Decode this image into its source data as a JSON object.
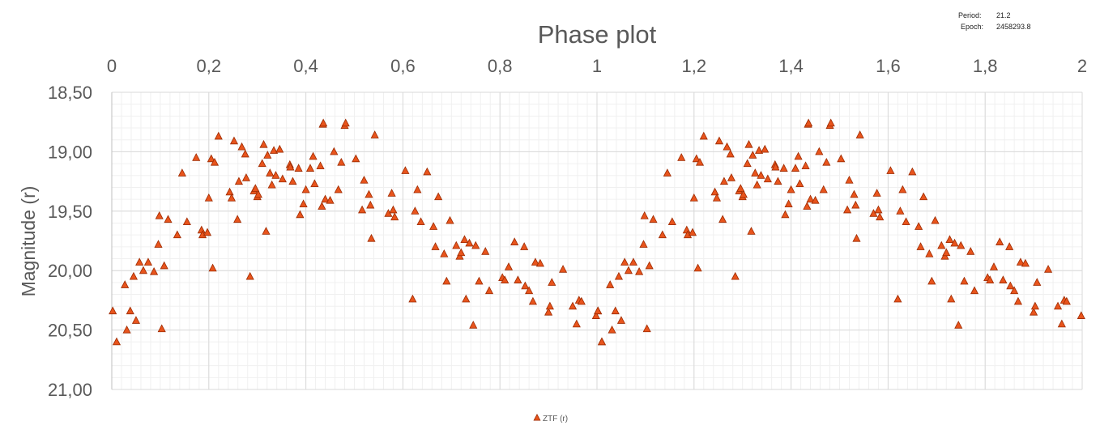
{
  "chart_data": {
    "type": "scatter",
    "title": "Phase plot",
    "xlabel": "",
    "ylabel": "Magnitude (r)",
    "xlim": [
      0,
      2
    ],
    "ylim": [
      18.5,
      21.0
    ],
    "y_inverted": true,
    "x_axis_position": "top",
    "xticks": [
      "0",
      "0,2",
      "0,4",
      "0,6",
      "0,8",
      "1",
      "1,2",
      "1,4",
      "1,6",
      "1,8",
      "2"
    ],
    "yticks": [
      "18,50",
      "19,00",
      "19,50",
      "20,00",
      "20,50",
      "21,00"
    ],
    "grid": true,
    "legend_position": "bottom-center",
    "marker": "triangle",
    "marker_color": "#E8541C",
    "marker_edge": "#9C2A00",
    "period_label": "Period:",
    "period_value": "21.2",
    "epoch_label": "Epoch:",
    "epoch_value": "2458293.8",
    "series": [
      {
        "name": "ZTF (r)",
        "points": [
          [
            0.002,
            20.34
          ],
          [
            0.01,
            20.6
          ],
          [
            0.027,
            20.12
          ],
          [
            0.031,
            20.5
          ],
          [
            0.038,
            20.34
          ],
          [
            0.045,
            20.05
          ],
          [
            0.05,
            20.42
          ],
          [
            0.057,
            19.93
          ],
          [
            0.065,
            20.0
          ],
          [
            0.075,
            19.93
          ],
          [
            0.087,
            20.01
          ],
          [
            0.096,
            19.78
          ],
          [
            0.098,
            19.54
          ],
          [
            0.103,
            20.49
          ],
          [
            0.108,
            19.96
          ],
          [
            0.116,
            19.57
          ],
          [
            0.135,
            19.7
          ],
          [
            0.145,
            19.18
          ],
          [
            0.155,
            19.59
          ],
          [
            0.174,
            19.05
          ],
          [
            0.185,
            19.66
          ],
          [
            0.187,
            19.7
          ],
          [
            0.197,
            19.68
          ],
          [
            0.2,
            19.39
          ],
          [
            0.205,
            19.06
          ],
          [
            0.208,
            19.98
          ],
          [
            0.212,
            19.09
          ],
          [
            0.22,
            18.87
          ],
          [
            0.243,
            19.34
          ],
          [
            0.247,
            19.39
          ],
          [
            0.252,
            18.91
          ],
          [
            0.259,
            19.57
          ],
          [
            0.262,
            19.25
          ],
          [
            0.268,
            18.96
          ],
          [
            0.275,
            19.02
          ],
          [
            0.277,
            19.22
          ],
          [
            0.285,
            20.05
          ],
          [
            0.293,
            19.33
          ],
          [
            0.296,
            19.31
          ],
          [
            0.3,
            19.38
          ],
          [
            0.302,
            19.36
          ],
          [
            0.31,
            19.1
          ],
          [
            0.313,
            18.94
          ],
          [
            0.318,
            19.67
          ],
          [
            0.321,
            19.03
          ],
          [
            0.326,
            19.18
          ],
          [
            0.33,
            19.28
          ],
          [
            0.334,
            18.99
          ],
          [
            0.338,
            19.2
          ],
          [
            0.346,
            18.98
          ],
          [
            0.352,
            19.23
          ],
          [
            0.367,
            19.11
          ],
          [
            0.368,
            19.13
          ],
          [
            0.373,
            19.25
          ],
          [
            0.385,
            19.14
          ],
          [
            0.388,
            19.53
          ],
          [
            0.395,
            19.44
          ],
          [
            0.4,
            19.32
          ],
          [
            0.409,
            19.14
          ],
          [
            0.415,
            19.04
          ],
          [
            0.418,
            19.27
          ],
          [
            0.43,
            19.12
          ],
          [
            0.433,
            19.46
          ],
          [
            0.435,
            18.77
          ],
          [
            0.436,
            18.76
          ],
          [
            0.44,
            19.4
          ],
          [
            0.45,
            19.41
          ],
          [
            0.458,
            19.0
          ],
          [
            0.467,
            19.32
          ],
          [
            0.473,
            19.09
          ],
          [
            0.48,
            18.78
          ],
          [
            0.482,
            18.76
          ],
          [
            0.503,
            19.06
          ],
          [
            0.516,
            19.49
          ],
          [
            0.52,
            19.24
          ],
          [
            0.53,
            19.36
          ],
          [
            0.533,
            19.45
          ],
          [
            0.535,
            19.73
          ],
          [
            0.542,
            18.86
          ],
          [
            0.57,
            19.52
          ],
          [
            0.577,
            19.35
          ],
          [
            0.58,
            19.49
          ],
          [
            0.583,
            19.55
          ],
          [
            0.605,
            19.16
          ],
          [
            0.62,
            20.24
          ],
          [
            0.625,
            19.5
          ],
          [
            0.63,
            19.32
          ],
          [
            0.637,
            19.59
          ],
          [
            0.65,
            19.17
          ],
          [
            0.663,
            19.63
          ],
          [
            0.667,
            19.8
          ],
          [
            0.673,
            19.38
          ],
          [
            0.685,
            19.86
          ],
          [
            0.69,
            20.09
          ],
          [
            0.697,
            19.58
          ],
          [
            0.71,
            19.79
          ],
          [
            0.717,
            19.88
          ],
          [
            0.72,
            19.85
          ],
          [
            0.727,
            19.74
          ],
          [
            0.73,
            20.24
          ],
          [
            0.737,
            19.77
          ],
          [
            0.745,
            20.46
          ],
          [
            0.75,
            19.79
          ],
          [
            0.757,
            20.09
          ],
          [
            0.77,
            19.84
          ],
          [
            0.778,
            20.17
          ],
          [
            0.805,
            20.06
          ],
          [
            0.81,
            20.08
          ],
          [
            0.818,
            19.97
          ],
          [
            0.83,
            19.76
          ],
          [
            0.837,
            20.08
          ],
          [
            0.85,
            19.8
          ],
          [
            0.852,
            20.13
          ],
          [
            0.86,
            20.17
          ],
          [
            0.868,
            20.26
          ],
          [
            0.873,
            19.93
          ],
          [
            0.883,
            19.94
          ],
          [
            0.9,
            20.35
          ],
          [
            0.903,
            20.3
          ],
          [
            0.907,
            20.1
          ],
          [
            0.93,
            19.99
          ],
          [
            0.95,
            20.3
          ],
          [
            0.958,
            20.45
          ],
          [
            0.963,
            20.25
          ],
          [
            0.968,
            20.26
          ],
          [
            0.998,
            20.38
          ],
          [
            1.002,
            20.34
          ],
          [
            1.01,
            20.6
          ]
        ]
      }
    ]
  }
}
